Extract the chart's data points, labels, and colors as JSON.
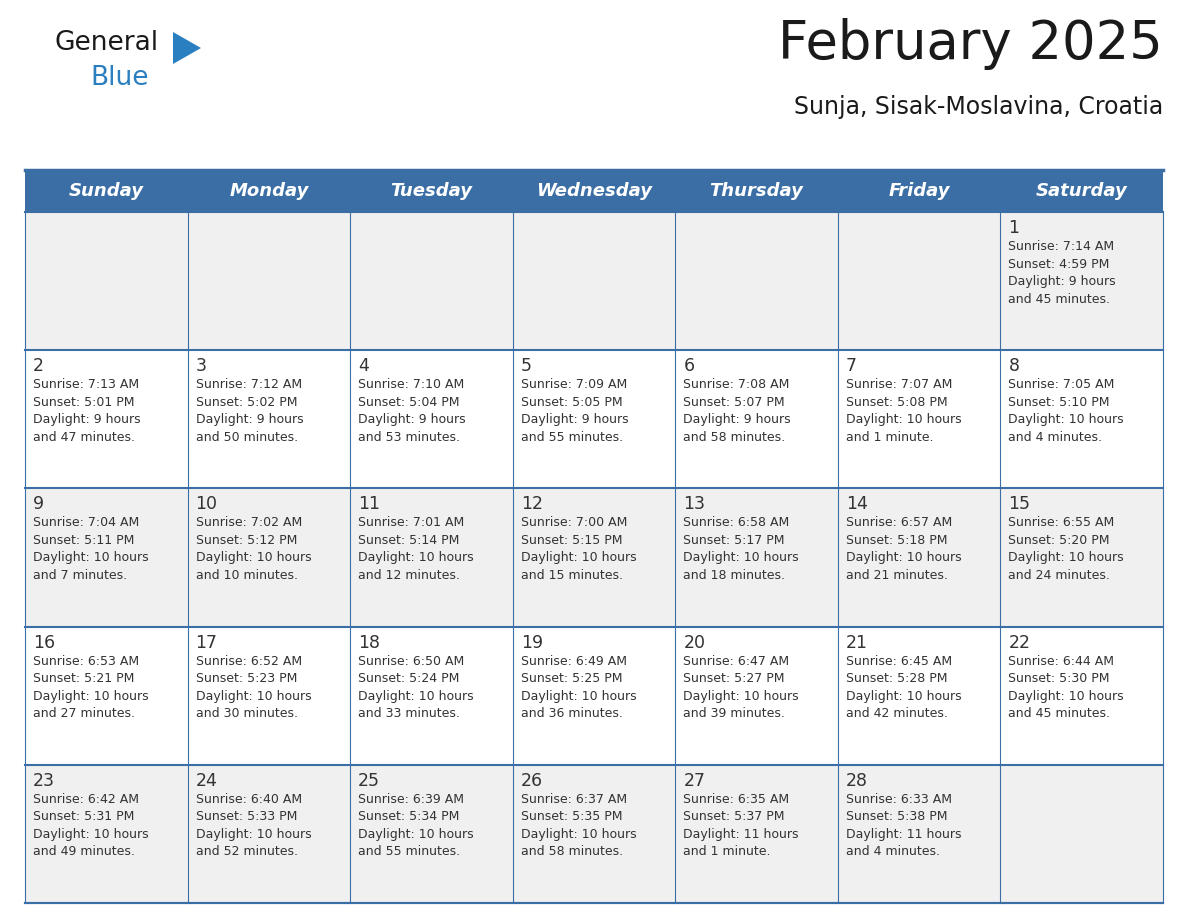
{
  "title": "February 2025",
  "subtitle": "Sunja, Sisak-Moslavina, Croatia",
  "days_of_week": [
    "Sunday",
    "Monday",
    "Tuesday",
    "Wednesday",
    "Thursday",
    "Friday",
    "Saturday"
  ],
  "header_bg": "#3a6ea5",
  "header_text": "#ffffff",
  "row_bg": [
    "#f0f0f0",
    "#ffffff",
    "#f0f0f0",
    "#ffffff",
    "#f0f0f0"
  ],
  "cell_text": "#333333",
  "day_num_color": "#333333",
  "border_color": "#3a6ea5",
  "title_color": "#1a1a1a",
  "subtitle_color": "#1a1a1a",
  "logo_general_color": "#1a1a1a",
  "logo_blue_color": "#2a7fc1",
  "cal_data": [
    [
      {
        "day": "",
        "sunrise": "",
        "sunset": "",
        "daylight_line1": "",
        "daylight_line2": ""
      },
      {
        "day": "",
        "sunrise": "",
        "sunset": "",
        "daylight_line1": "",
        "daylight_line2": ""
      },
      {
        "day": "",
        "sunrise": "",
        "sunset": "",
        "daylight_line1": "",
        "daylight_line2": ""
      },
      {
        "day": "",
        "sunrise": "",
        "sunset": "",
        "daylight_line1": "",
        "daylight_line2": ""
      },
      {
        "day": "",
        "sunrise": "",
        "sunset": "",
        "daylight_line1": "",
        "daylight_line2": ""
      },
      {
        "day": "",
        "sunrise": "",
        "sunset": "",
        "daylight_line1": "",
        "daylight_line2": ""
      },
      {
        "day": "1",
        "sunrise": "7:14 AM",
        "sunset": "4:59 PM",
        "daylight_line1": "9 hours",
        "daylight_line2": "and 45 minutes."
      }
    ],
    [
      {
        "day": "2",
        "sunrise": "7:13 AM",
        "sunset": "5:01 PM",
        "daylight_line1": "9 hours",
        "daylight_line2": "and 47 minutes."
      },
      {
        "day": "3",
        "sunrise": "7:12 AM",
        "sunset": "5:02 PM",
        "daylight_line1": "9 hours",
        "daylight_line2": "and 50 minutes."
      },
      {
        "day": "4",
        "sunrise": "7:10 AM",
        "sunset": "5:04 PM",
        "daylight_line1": "9 hours",
        "daylight_line2": "and 53 minutes."
      },
      {
        "day": "5",
        "sunrise": "7:09 AM",
        "sunset": "5:05 PM",
        "daylight_line1": "9 hours",
        "daylight_line2": "and 55 minutes."
      },
      {
        "day": "6",
        "sunrise": "7:08 AM",
        "sunset": "5:07 PM",
        "daylight_line1": "9 hours",
        "daylight_line2": "and 58 minutes."
      },
      {
        "day": "7",
        "sunrise": "7:07 AM",
        "sunset": "5:08 PM",
        "daylight_line1": "10 hours",
        "daylight_line2": "and 1 minute."
      },
      {
        "day": "8",
        "sunrise": "7:05 AM",
        "sunset": "5:10 PM",
        "daylight_line1": "10 hours",
        "daylight_line2": "and 4 minutes."
      }
    ],
    [
      {
        "day": "9",
        "sunrise": "7:04 AM",
        "sunset": "5:11 PM",
        "daylight_line1": "10 hours",
        "daylight_line2": "and 7 minutes."
      },
      {
        "day": "10",
        "sunrise": "7:02 AM",
        "sunset": "5:12 PM",
        "daylight_line1": "10 hours",
        "daylight_line2": "and 10 minutes."
      },
      {
        "day": "11",
        "sunrise": "7:01 AM",
        "sunset": "5:14 PM",
        "daylight_line1": "10 hours",
        "daylight_line2": "and 12 minutes."
      },
      {
        "day": "12",
        "sunrise": "7:00 AM",
        "sunset": "5:15 PM",
        "daylight_line1": "10 hours",
        "daylight_line2": "and 15 minutes."
      },
      {
        "day": "13",
        "sunrise": "6:58 AM",
        "sunset": "5:17 PM",
        "daylight_line1": "10 hours",
        "daylight_line2": "and 18 minutes."
      },
      {
        "day": "14",
        "sunrise": "6:57 AM",
        "sunset": "5:18 PM",
        "daylight_line1": "10 hours",
        "daylight_line2": "and 21 minutes."
      },
      {
        "day": "15",
        "sunrise": "6:55 AM",
        "sunset": "5:20 PM",
        "daylight_line1": "10 hours",
        "daylight_line2": "and 24 minutes."
      }
    ],
    [
      {
        "day": "16",
        "sunrise": "6:53 AM",
        "sunset": "5:21 PM",
        "daylight_line1": "10 hours",
        "daylight_line2": "and 27 minutes."
      },
      {
        "day": "17",
        "sunrise": "6:52 AM",
        "sunset": "5:23 PM",
        "daylight_line1": "10 hours",
        "daylight_line2": "and 30 minutes."
      },
      {
        "day": "18",
        "sunrise": "6:50 AM",
        "sunset": "5:24 PM",
        "daylight_line1": "10 hours",
        "daylight_line2": "and 33 minutes."
      },
      {
        "day": "19",
        "sunrise": "6:49 AM",
        "sunset": "5:25 PM",
        "daylight_line1": "10 hours",
        "daylight_line2": "and 36 minutes."
      },
      {
        "day": "20",
        "sunrise": "6:47 AM",
        "sunset": "5:27 PM",
        "daylight_line1": "10 hours",
        "daylight_line2": "and 39 minutes."
      },
      {
        "day": "21",
        "sunrise": "6:45 AM",
        "sunset": "5:28 PM",
        "daylight_line1": "10 hours",
        "daylight_line2": "and 42 minutes."
      },
      {
        "day": "22",
        "sunrise": "6:44 AM",
        "sunset": "5:30 PM",
        "daylight_line1": "10 hours",
        "daylight_line2": "and 45 minutes."
      }
    ],
    [
      {
        "day": "23",
        "sunrise": "6:42 AM",
        "sunset": "5:31 PM",
        "daylight_line1": "10 hours",
        "daylight_line2": "and 49 minutes."
      },
      {
        "day": "24",
        "sunrise": "6:40 AM",
        "sunset": "5:33 PM",
        "daylight_line1": "10 hours",
        "daylight_line2": "and 52 minutes."
      },
      {
        "day": "25",
        "sunrise": "6:39 AM",
        "sunset": "5:34 PM",
        "daylight_line1": "10 hours",
        "daylight_line2": "and 55 minutes."
      },
      {
        "day": "26",
        "sunrise": "6:37 AM",
        "sunset": "5:35 PM",
        "daylight_line1": "10 hours",
        "daylight_line2": "and 58 minutes."
      },
      {
        "day": "27",
        "sunrise": "6:35 AM",
        "sunset": "5:37 PM",
        "daylight_line1": "11 hours",
        "daylight_line2": "and 1 minute."
      },
      {
        "day": "28",
        "sunrise": "6:33 AM",
        "sunset": "5:38 PM",
        "daylight_line1": "11 hours",
        "daylight_line2": "and 4 minutes."
      },
      {
        "day": "",
        "sunrise": "",
        "sunset": "",
        "daylight_line1": "",
        "daylight_line2": ""
      }
    ]
  ]
}
